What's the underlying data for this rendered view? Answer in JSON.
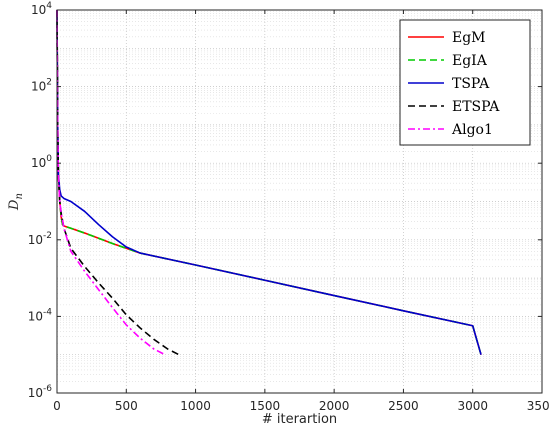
{
  "chart_data": {
    "type": "line",
    "xlabel": "# iterartion",
    "ylabel": "D",
    "ylabel_sub": "n",
    "xlim": [
      0,
      3500
    ],
    "ylim": [
      1e-06,
      10000
    ],
    "yscale": "log",
    "grid": true,
    "minor_grid": true,
    "legend_position": "top-right",
    "x_ticks": [
      0,
      500,
      1000,
      1500,
      2000,
      2500,
      3000,
      3500
    ],
    "y_ticks": [
      {
        "base": "10",
        "exp": "4",
        "value": 10000
      },
      {
        "base": "10",
        "exp": "2",
        "value": 100
      },
      {
        "base": "10",
        "exp": "0",
        "value": 1
      },
      {
        "base": "10",
        "exp": "-2",
        "value": 0.01
      },
      {
        "base": "10",
        "exp": "-4",
        "value": 0.0001
      },
      {
        "base": "10",
        "exp": "-6",
        "value": 1e-06
      }
    ],
    "series": [
      {
        "name": "EgM",
        "color": "#ff0000",
        "dash": "solid",
        "x": [
          0,
          5,
          10,
          20,
          30,
          40,
          50,
          100,
          200,
          300,
          400,
          500,
          600,
          1000,
          1500,
          2000,
          2500,
          3000,
          3060
        ],
        "y": [
          10000,
          10,
          0.5,
          0.1,
          0.04,
          0.025,
          0.023,
          0.02,
          0.015,
          0.011,
          0.008,
          0.006,
          0.0045,
          0.0022,
          0.00088,
          0.00035,
          0.00014,
          5.7e-05,
          1e-05
        ]
      },
      {
        "name": "EgIA",
        "color": "#00cc00",
        "dash": "dashed",
        "x": [
          0,
          5,
          10,
          20,
          30,
          40,
          50,
          100,
          200,
          300,
          400,
          500,
          600,
          1000,
          1500,
          2000,
          2500,
          3000,
          3060
        ],
        "y": [
          10000,
          10,
          0.5,
          0.1,
          0.04,
          0.025,
          0.023,
          0.02,
          0.015,
          0.011,
          0.008,
          0.006,
          0.0045,
          0.0022,
          0.00088,
          0.00035,
          0.00014,
          5.7e-05,
          1e-05
        ]
      },
      {
        "name": "TSPA",
        "color": "#0000cc",
        "dash": "solid",
        "x": [
          0,
          5,
          10,
          20,
          30,
          50,
          100,
          200,
          300,
          400,
          500,
          600,
          1000,
          1500,
          2000,
          2500,
          3000,
          3060
        ],
        "y": [
          10000,
          10,
          0.5,
          0.2,
          0.14,
          0.12,
          0.1,
          0.055,
          0.025,
          0.012,
          0.0065,
          0.0045,
          0.0022,
          0.00088,
          0.00035,
          0.00014,
          5.7e-05,
          1e-05
        ]
      },
      {
        "name": "ETSPA",
        "color": "#000000",
        "dash": "dashed",
        "x": [
          0,
          5,
          10,
          20,
          30,
          50,
          100,
          200,
          300,
          400,
          500,
          600,
          700,
          800,
          880
        ],
        "y": [
          10000,
          5,
          0.5,
          0.1,
          0.05,
          0.02,
          0.006,
          0.002,
          0.00075,
          0.0003,
          0.00011,
          5e-05,
          2.5e-05,
          1.4e-05,
          1e-05
        ]
      },
      {
        "name": "Algo1",
        "color": "#ff00ff",
        "dash": "dashdot",
        "x": [
          0,
          5,
          10,
          20,
          30,
          50,
          100,
          200,
          300,
          400,
          500,
          600,
          700,
          780
        ],
        "y": [
          10000,
          5,
          0.5,
          0.1,
          0.05,
          0.02,
          0.005,
          0.0015,
          0.0005,
          0.00017,
          6e-05,
          2.7e-05,
          1.4e-05,
          1e-05
        ]
      }
    ]
  }
}
